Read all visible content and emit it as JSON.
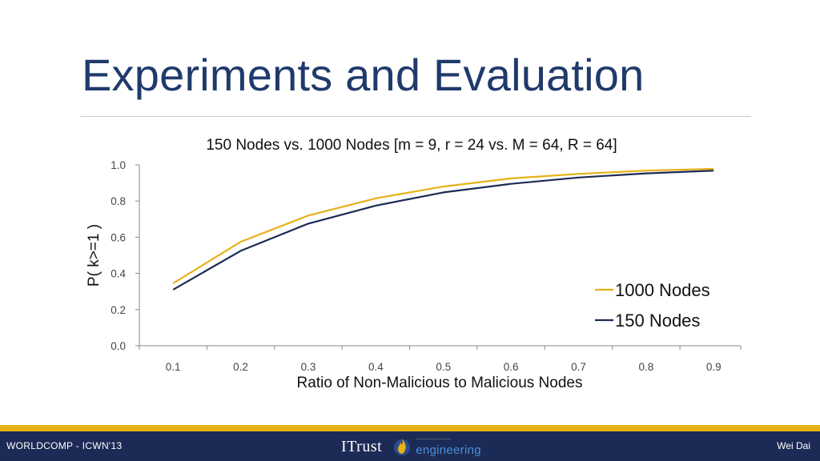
{
  "slide": {
    "title": "Experiments and Evaluation"
  },
  "chart_data": {
    "type": "line",
    "title": "150 Nodes vs. 1000 Nodes [m = 9, r = 24 vs. M = 64, R = 64]",
    "xlabel": "Ratio of Non-Malicious to Malicious Nodes",
    "ylabel": "P( k>=1 )",
    "categories": [
      "0.1",
      "0.2",
      "0.3",
      "0.4",
      "0.5",
      "0.6",
      "0.7",
      "0.8",
      "0.9"
    ],
    "y_ticks": [
      "0.0",
      "0.2",
      "0.4",
      "0.6",
      "0.8",
      "1.0"
    ],
    "ylim": [
      0,
      1
    ],
    "grid": false,
    "legend_position": "right",
    "series": [
      {
        "name": "1000 Nodes",
        "color": "#e6b117",
        "values": [
          0.345,
          0.575,
          0.72,
          0.815,
          0.88,
          0.925,
          0.95,
          0.968,
          0.978
        ]
      },
      {
        "name": "150 Nodes",
        "color": "#1c2b55",
        "values": [
          0.31,
          0.525,
          0.675,
          0.775,
          0.848,
          0.895,
          0.93,
          0.953,
          0.968
        ]
      }
    ]
  },
  "footer": {
    "left_text": "WORLDCOMP - ICWN'13",
    "right_text": "Wei Dai",
    "logo_main": "ITrust",
    "logo_sub": "engineering"
  }
}
